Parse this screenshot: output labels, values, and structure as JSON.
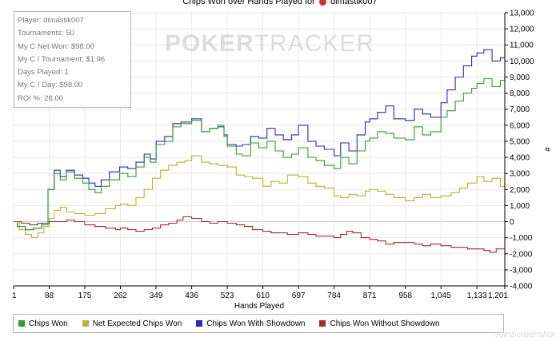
{
  "title": {
    "before": "Chips Won over Hands Played for",
    "player": "dimastik007"
  },
  "stats": [
    "Player: dimastik007",
    "Tournaments: 50",
    "My C Net Won: $98.00",
    "My C / Tournament: $1.96",
    "Days Played: 1",
    "My C / Day: $98.00",
    "ROI %: 28.00"
  ],
  "watermark": {
    "bold": "POKER",
    "rest": "TRACKER"
  },
  "screenshot_mark": "JoinScreenshot",
  "colors": {
    "chips_won": "#2aa12a",
    "net_expected": "#b5b52a",
    "showdown": "#2a2ab8",
    "without_showdown": "#a52a2a",
    "grid": "#e8e8e8",
    "zero_line": "#c8c8c8"
  },
  "chart_data": {
    "type": "line",
    "title": "Chips Won over Hands Played for dimastik007",
    "xlabel": "Hands Played",
    "ylabel": "#",
    "xlim": [
      1,
      1201
    ],
    "ylim": [
      -4000,
      13000
    ],
    "x_ticks": [
      1,
      88,
      175,
      262,
      349,
      436,
      523,
      610,
      697,
      784,
      871,
      958,
      1045,
      1133,
      1201
    ],
    "x_tick_labels": [
      "1",
      "88",
      "175",
      "262",
      "349",
      "436",
      "523",
      "610",
      "697",
      "784",
      "871",
      "958",
      "1,045",
      "1,133",
      "1,201"
    ],
    "y_ticks": [
      -4000,
      -3000,
      -2000,
      -1000,
      0,
      1000,
      2000,
      3000,
      4000,
      5000,
      6000,
      7000,
      8000,
      9000,
      10000,
      11000,
      12000,
      13000
    ],
    "y_tick_labels": [
      "-4,000",
      "-3,000",
      "-2,000",
      "-1,000",
      "0",
      "1,000",
      "2,000",
      "3,000",
      "4,000",
      "5,000",
      "6,000",
      "7,000",
      "8,000",
      "9,000",
      "10,000",
      "11,000",
      "12,000",
      "13,000"
    ],
    "grid": true,
    "legend_position": "bottom",
    "series": [
      {
        "name": "Chips Won",
        "color": "#2aa12a",
        "x": [
          1,
          10,
          30,
          50,
          70,
          85,
          100,
          115,
          130,
          150,
          170,
          185,
          200,
          215,
          235,
          260,
          280,
          300,
          320,
          335,
          349,
          370,
          390,
          410,
          436,
          460,
          480,
          500,
          515,
          523,
          545,
          560,
          580,
          600,
          620,
          640,
          660,
          680,
          697,
          720,
          740,
          760,
          784,
          800,
          820,
          840,
          860,
          871,
          890,
          910,
          930,
          958,
          980,
          1000,
          1020,
          1045,
          1060,
          1080,
          1100,
          1120,
          1133,
          1150,
          1170,
          1190,
          1201
        ],
        "y": [
          0,
          -300,
          -500,
          -400,
          -200,
          2000,
          3000,
          2600,
          3100,
          2700,
          2400,
          2000,
          1800,
          2200,
          2600,
          3000,
          2800,
          3400,
          4000,
          3700,
          4800,
          5000,
          5900,
          6100,
          6300,
          5600,
          5800,
          6000,
          5300,
          4700,
          4200,
          4100,
          4900,
          4600,
          5000,
          4400,
          4000,
          4200,
          4600,
          4000,
          3800,
          3500,
          3300,
          4000,
          3600,
          4400,
          5000,
          5200,
          5600,
          5500,
          5200,
          5100,
          5900,
          5400,
          5600,
          6500,
          6900,
          7500,
          8000,
          8300,
          8600,
          8900,
          8400,
          8800,
          9100
        ]
      },
      {
        "name": "Net Expected Chips Won",
        "color": "#b5b52a",
        "x": [
          1,
          15,
          30,
          45,
          60,
          75,
          88,
          100,
          115,
          130,
          150,
          175,
          200,
          225,
          250,
          262,
          280,
          300,
          320,
          340,
          360,
          380,
          400,
          420,
          436,
          460,
          480,
          500,
          523,
          545,
          565,
          585,
          610,
          630,
          650,
          670,
          697,
          720,
          740,
          760,
          784,
          800,
          820,
          840,
          860,
          871,
          890,
          910,
          930,
          958,
          980,
          1000,
          1020,
          1045,
          1070,
          1090,
          1110,
          1133,
          1150,
          1170,
          1190,
          1201
        ],
        "y": [
          0,
          -500,
          -800,
          -1000,
          -700,
          -300,
          200,
          700,
          900,
          600,
          500,
          400,
          500,
          800,
          1000,
          1100,
          1000,
          1500,
          2000,
          2700,
          3200,
          3500,
          3700,
          3800,
          4100,
          3700,
          3600,
          3500,
          3400,
          2900,
          2800,
          2700,
          2200,
          2500,
          2400,
          2900,
          2800,
          2400,
          2200,
          2100,
          1600,
          1500,
          1700,
          1600,
          1900,
          2000,
          1900,
          1700,
          1500,
          1300,
          1500,
          1700,
          1500,
          1600,
          1800,
          2100,
          2400,
          2800,
          2500,
          2700,
          2200,
          2100
        ]
      },
      {
        "name": "Chips Won With Showdown",
        "color": "#2a2ab8",
        "x": [
          1,
          10,
          30,
          50,
          70,
          85,
          100,
          115,
          130,
          150,
          170,
          185,
          200,
          215,
          235,
          260,
          280,
          300,
          320,
          335,
          349,
          370,
          390,
          410,
          436,
          460,
          480,
          500,
          515,
          523,
          545,
          560,
          580,
          600,
          620,
          640,
          660,
          680,
          697,
          720,
          740,
          760,
          784,
          800,
          820,
          840,
          860,
          871,
          890,
          910,
          930,
          958,
          980,
          1000,
          1020,
          1045,
          1060,
          1080,
          1100,
          1120,
          1133,
          1150,
          1170,
          1190,
          1201
        ],
        "y": [
          0,
          -300,
          -500,
          -400,
          -100,
          2000,
          3200,
          2800,
          3200,
          2900,
          2700,
          2400,
          2200,
          2600,
          3100,
          3400,
          3300,
          3700,
          4200,
          3900,
          5000,
          5300,
          6100,
          6200,
          6400,
          5600,
          5800,
          5900,
          5400,
          4800,
          4700,
          4800,
          5300,
          5200,
          5800,
          5400,
          5100,
          5400,
          6000,
          5000,
          4700,
          4500,
          4100,
          4900,
          4400,
          5400,
          6200,
          6400,
          6800,
          7200,
          6400,
          6300,
          7000,
          6700,
          6500,
          7400,
          8200,
          9000,
          9700,
          10300,
          10500,
          10700,
          10000,
          10200,
          10800
        ]
      },
      {
        "name": "Chips Won Without Showdown",
        "color": "#a52a2a",
        "x": [
          1,
          20,
          40,
          60,
          88,
          110,
          130,
          150,
          175,
          200,
          225,
          250,
          262,
          280,
          300,
          320,
          340,
          360,
          380,
          400,
          415,
          436,
          460,
          480,
          500,
          523,
          545,
          565,
          585,
          610,
          630,
          650,
          670,
          697,
          720,
          740,
          760,
          784,
          800,
          815,
          830,
          850,
          871,
          890,
          910,
          930,
          958,
          980,
          1000,
          1020,
          1045,
          1070,
          1090,
          1110,
          1133,
          1150,
          1165,
          1180,
          1201
        ],
        "y": [
          0,
          -100,
          -200,
          -100,
          0,
          0,
          100,
          0,
          -200,
          -300,
          -400,
          -500,
          -400,
          -500,
          -600,
          -500,
          -400,
          -200,
          -100,
          100,
          300,
          200,
          0,
          -100,
          0,
          -100,
          -200,
          -300,
          -500,
          -600,
          -700,
          -700,
          -800,
          -700,
          -800,
          -900,
          -900,
          -1000,
          -800,
          -600,
          -700,
          -1000,
          -1100,
          -1200,
          -1400,
          -1300,
          -1300,
          -1400,
          -1500,
          -1400,
          -1500,
          -1600,
          -1600,
          -1700,
          -1700,
          -1800,
          -1900,
          -1700,
          -1700
        ]
      }
    ]
  }
}
